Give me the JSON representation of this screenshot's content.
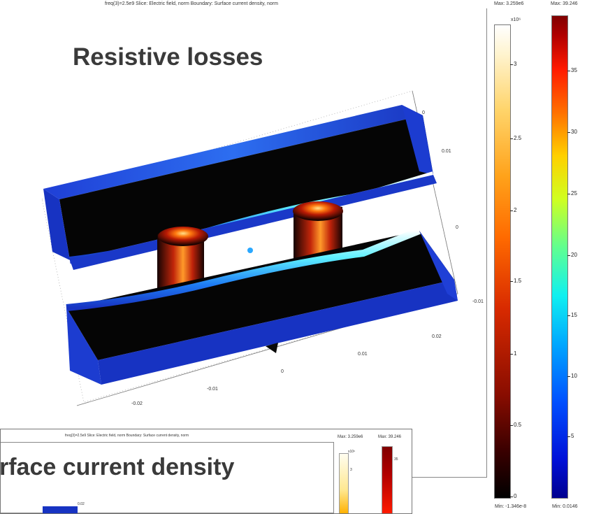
{
  "main_plot": {
    "header": "freq(3)=2.5e9   Slice: Electric field, norm   Boundary: Surface current density, norm",
    "title": "Resistive losses",
    "axis_ticks": [
      {
        "label": "0"
      },
      {
        "label": "0.01"
      },
      {
        "label": "0"
      },
      {
        "label": "-0.01"
      },
      {
        "label": "0.02"
      },
      {
        "label": "0.01"
      },
      {
        "label": "0"
      },
      {
        "label": "-0.01"
      },
      {
        "label": "-0.02"
      }
    ]
  },
  "colorbar_efield": {
    "max_label": "Max: 3.259e6",
    "min_label": "Min: -1.346e-8",
    "exponent": "x10⁶",
    "ticks": [
      "3",
      "2.5",
      "2",
      "1.5",
      "1",
      "0.5",
      "0"
    ]
  },
  "colorbar_current": {
    "max_label": "Max: 39.246",
    "min_label": "Min: 0.0146",
    "ticks": [
      "35",
      "30",
      "25",
      "20",
      "15",
      "10",
      "5"
    ]
  },
  "overlay_plot": {
    "header": "freq(3)=2.5e9   Slice: Electric field, norm   Boundary: Surface current density, norm",
    "title": "rface current density",
    "max_label_efield": "Max: 3.259e6",
    "max_label_current": "Max: 39.246",
    "exponent": "x10⁶",
    "tick_efield": "3",
    "tick_current": "35",
    "axis_tick": "0.02"
  },
  "colors": {
    "cold_blue": "#1533c8",
    "hot_orange": "#ff6a00",
    "dark": "#050505"
  }
}
